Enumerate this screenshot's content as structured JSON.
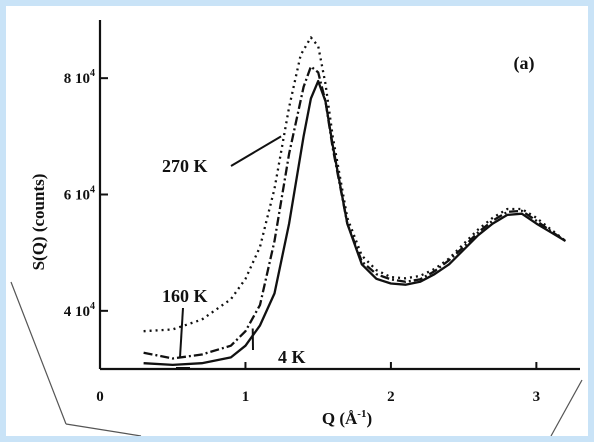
{
  "colors": {
    "background": "#c9e3f7",
    "frame": "#ffffff",
    "ink": "#111111"
  },
  "chart_data": {
    "type": "line",
    "panel_label": "(a)",
    "xlabel_main": "Q (Å",
    "xlabel_sup": "-1",
    "xlabel_close": ")",
    "ylabel": "S(Q) (counts)",
    "xlim": [
      0,
      3.3
    ],
    "ylim": [
      30000,
      90000
    ],
    "x_ticks": [
      {
        "value": 0,
        "label": "0"
      },
      {
        "value": 1,
        "label": "1"
      },
      {
        "value": 2,
        "label": "2"
      },
      {
        "value": 3,
        "label": "3"
      }
    ],
    "y_ticks": [
      {
        "value": 40000,
        "mantissa": "4",
        "base": "10",
        "exp": "4"
      },
      {
        "value": 60000,
        "mantissa": "6",
        "base": "10",
        "exp": "4"
      },
      {
        "value": 80000,
        "mantissa": "8",
        "base": "10",
        "exp": "4"
      }
    ],
    "series": [
      {
        "name": "270 K",
        "dash": "2,4",
        "x": [
          0.3,
          0.5,
          0.7,
          0.9,
          1.0,
          1.1,
          1.2,
          1.3,
          1.38,
          1.45,
          1.5,
          1.55,
          1.6,
          1.7,
          1.8,
          1.9,
          2.0,
          2.1,
          2.2,
          2.3,
          2.4,
          2.5,
          2.6,
          2.7,
          2.8,
          2.9,
          3.0,
          3.1,
          3.2
        ],
        "y": [
          36500,
          36800,
          38500,
          42000,
          45500,
          51000,
          61000,
          75000,
          84000,
          87000,
          85500,
          79000,
          70000,
          56000,
          49500,
          47000,
          45800,
          45600,
          46000,
          47200,
          49000,
          51500,
          54000,
          56000,
          57500,
          57500,
          56000,
          54000,
          52000
        ]
      },
      {
        "name": "160 K",
        "dash": "9,3,2,3",
        "x": [
          0.3,
          0.5,
          0.7,
          0.9,
          1.0,
          1.1,
          1.2,
          1.3,
          1.4,
          1.45,
          1.5,
          1.55,
          1.6,
          1.7,
          1.8,
          1.9,
          2.0,
          2.1,
          2.2,
          2.3,
          2.4,
          2.5,
          2.6,
          2.7,
          2.8,
          2.9,
          3.0,
          3.1,
          3.2
        ],
        "y": [
          32800,
          31800,
          32500,
          34000,
          36500,
          41000,
          52000,
          67000,
          78500,
          82000,
          81000,
          76000,
          68000,
          55000,
          48500,
          46300,
          45400,
          45000,
          45400,
          46800,
          48700,
          51000,
          53500,
          55500,
          57000,
          57200,
          55500,
          53700,
          52000
        ]
      },
      {
        "name": "4 K",
        "dash": "",
        "x": [
          0.3,
          0.5,
          0.7,
          0.9,
          1.0,
          1.1,
          1.2,
          1.3,
          1.4,
          1.45,
          1.5,
          1.55,
          1.6,
          1.7,
          1.8,
          1.9,
          2.0,
          2.1,
          2.2,
          2.3,
          2.4,
          2.5,
          2.6,
          2.7,
          2.8,
          2.9,
          3.0,
          3.1,
          3.2
        ],
        "y": [
          31000,
          30700,
          31000,
          32000,
          34000,
          37500,
          43000,
          55000,
          70000,
          76500,
          79500,
          76000,
          68500,
          55000,
          48000,
          45500,
          44700,
          44500,
          45000,
          46300,
          48000,
          50500,
          53000,
          55000,
          56500,
          56700,
          55000,
          53500,
          52000
        ]
      }
    ],
    "curve_labels": [
      {
        "text": "270 K",
        "series": "270 K"
      },
      {
        "text": "160 K",
        "series": "160 K"
      },
      {
        "text": "4 K",
        "series": "4 K"
      }
    ]
  }
}
